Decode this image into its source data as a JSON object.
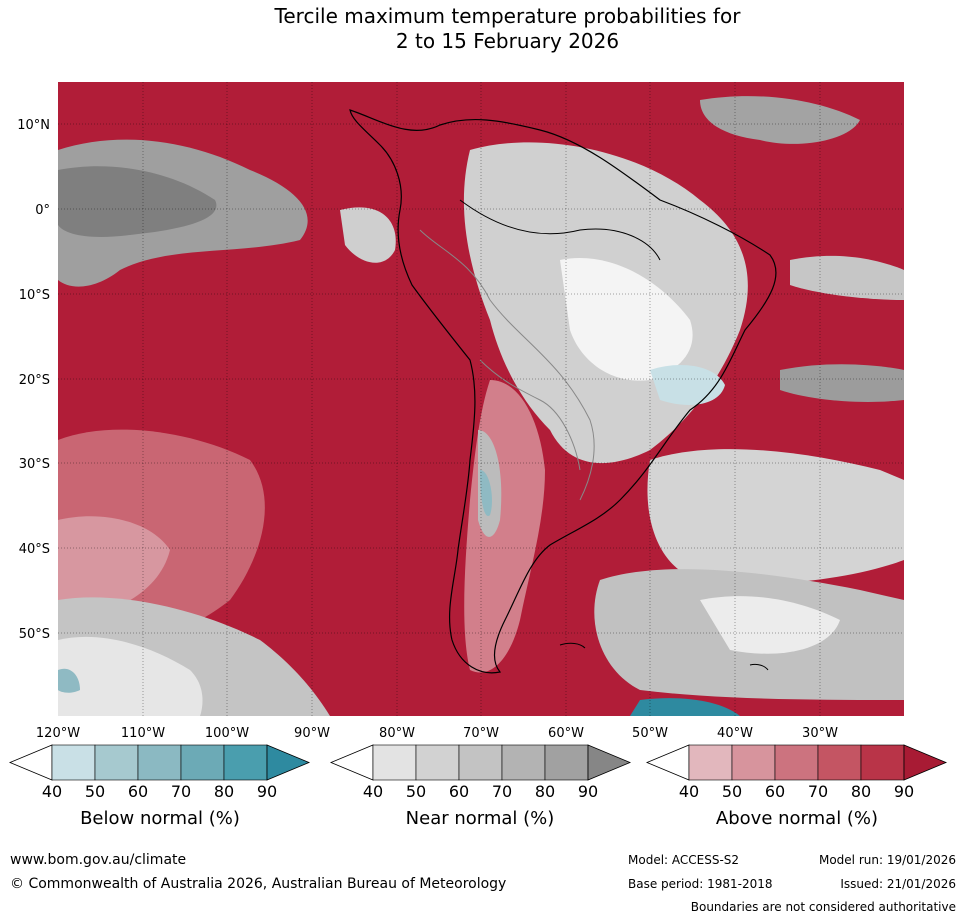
{
  "title": {
    "line1": "Tercile maximum temperature probabilities for",
    "line2": "2 to 15 February 2026"
  },
  "map": {
    "lat_labels": [
      "10°N",
      "0°",
      "10°S",
      "20°S",
      "30°S",
      "40°S",
      "50°S"
    ],
    "lon_labels": [
      "120°W",
      "110°W",
      "100°W",
      "90°W",
      "80°W",
      "70°W",
      "60°W",
      "50°W",
      "40°W",
      "30°W"
    ]
  },
  "colorbars": [
    {
      "label": "Below normal (%)",
      "ticks": [
        "40",
        "50",
        "60",
        "70",
        "80",
        "90"
      ],
      "colors": [
        "#ffffff",
        "#c9e0e6",
        "#a6c9cf",
        "#8bb9c2",
        "#6caab6",
        "#4a9eae",
        "#2e8aa0"
      ]
    },
    {
      "label": "Near normal (%)",
      "ticks": [
        "40",
        "50",
        "60",
        "70",
        "80",
        "90"
      ],
      "colors": [
        "#ffffff",
        "#e3e3e3",
        "#d2d2d2",
        "#c3c3c3",
        "#b3b3b3",
        "#a1a1a1",
        "#868686"
      ]
    },
    {
      "label": "Above normal (%)",
      "ticks": [
        "40",
        "50",
        "60",
        "70",
        "80",
        "90"
      ],
      "colors": [
        "#ffffff",
        "#e2b7bd",
        "#d7949d",
        "#cc737f",
        "#c45563",
        "#b93448",
        "#a81b34"
      ]
    }
  ],
  "footer": {
    "url": "www.bom.gov.au/climate",
    "copyright": "© Commonwealth of Australia 2026, Australian Bureau of Meteorology",
    "model": "Model: ACCESS-S2",
    "base_period": "Base period: 1981-2018",
    "model_run": "Model run: 19/01/2026",
    "issued": "Issued: 21/01/2026",
    "boundaries_note": "Boundaries are not considered authoritative"
  }
}
